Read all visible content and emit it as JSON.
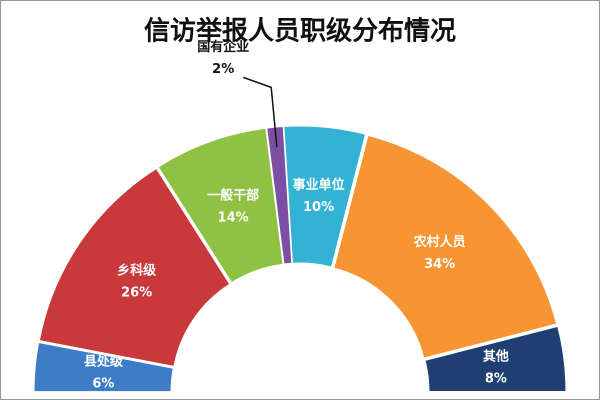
{
  "chart_data": {
    "type": "pie",
    "title": "信访举报人员职级分布情况",
    "categories": [
      "县处级",
      "乡科级",
      "一般干部",
      "国有企业",
      "事业单位",
      "农村人员",
      "其他"
    ],
    "values": [
      6,
      26,
      14,
      2,
      10,
      34,
      8
    ],
    "value_labels": [
      "6%",
      "26%",
      "14%",
      "2%",
      "10%",
      "34%",
      "8%"
    ],
    "colors": [
      "#3d7cc6",
      "#c9383a",
      "#8fc142",
      "#7b4fa3",
      "#33b2d3",
      "#f79434",
      "#1f3e72"
    ]
  }
}
